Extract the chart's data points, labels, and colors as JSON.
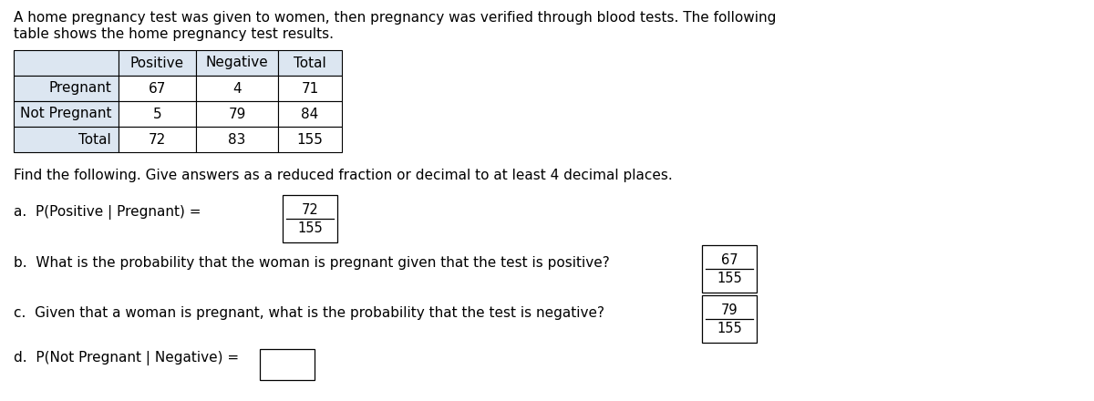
{
  "intro_text_line1": "A home pregnancy test was given to women, then pregnancy was verified through blood tests. The following",
  "intro_text_line2": "table shows the home pregnancy test results.",
  "table": {
    "col_headers": [
      "",
      "Positive",
      "Negative",
      "Total"
    ],
    "rows": [
      [
        "Pregnant",
        "67",
        "4",
        "71"
      ],
      [
        "Not Pregnant",
        "5",
        "79",
        "84"
      ],
      [
        "Total",
        "72",
        "83",
        "155"
      ]
    ],
    "header_bg": "#dce6f1",
    "row_label_bg": "#dce6f1",
    "cell_bg": "#ffffff",
    "border_color": "#000000"
  },
  "find_text": "Find the following. Give answers as a reduced fraction or decimal to at least 4 decimal places.",
  "q_a_text": "a.  P(Positive | Pregnant) =",
  "q_a_num": "72",
  "q_a_den": "155",
  "q_b_text": "b.  What is the probability that the woman is pregnant given that the test is positive?",
  "q_b_num": "67",
  "q_b_den": "155",
  "q_c_text": "c.  Given that a woman is pregnant, what is the probability that the test is negative?",
  "q_c_num": "79",
  "q_c_den": "155",
  "q_d_text": "d.  P(Not Pregnant | Negative) =",
  "bg_color": "#ffffff",
  "text_color": "#000000",
  "font_size": 11
}
